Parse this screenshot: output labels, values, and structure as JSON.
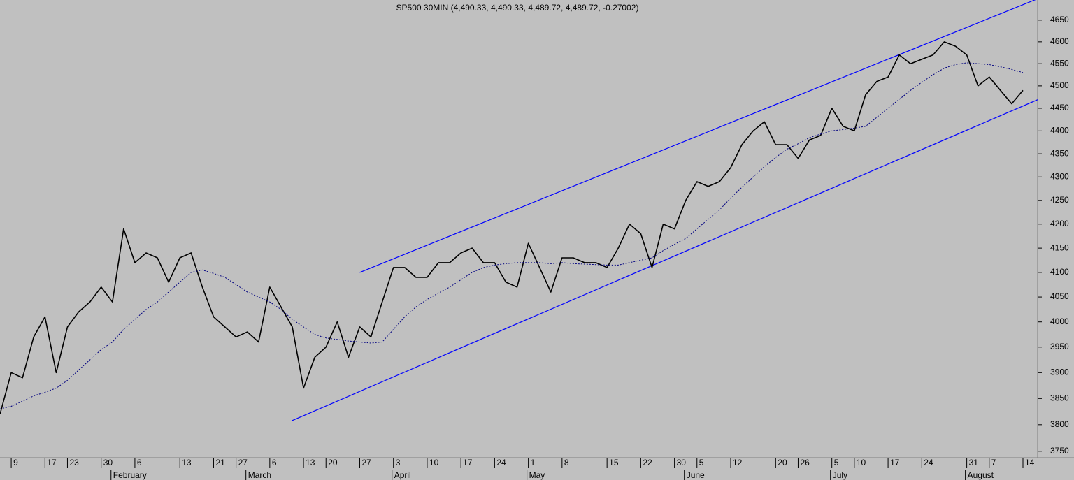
{
  "chart_data": {
    "type": "line",
    "title": "SP500 30MIN (4,490.33, 4,490.33, 4,489.72, 4,489.72, -0.27002)",
    "categories": [
      null,
      "9",
      null,
      null,
      "17",
      null,
      "23",
      null,
      null,
      "30",
      null,
      null,
      "6",
      null,
      null,
      null,
      "13",
      null,
      null,
      "21",
      null,
      "27",
      null,
      null,
      "6",
      null,
      null,
      "13",
      null,
      "20",
      null,
      null,
      "27",
      null,
      null,
      "3",
      null,
      null,
      "10",
      null,
      null,
      "17",
      null,
      null,
      "24",
      null,
      null,
      "1",
      null,
      null,
      "8",
      null,
      null,
      null,
      "15",
      null,
      null,
      "22",
      null,
      null,
      "30",
      null,
      "5",
      null,
      null,
      "12",
      null,
      null,
      null,
      "20",
      null,
      "26",
      null,
      null,
      "5",
      null,
      "10",
      null,
      null,
      "17",
      null,
      null,
      "24",
      null,
      null,
      null,
      "31",
      null,
      "7",
      null,
      null,
      "14"
    ],
    "months": [
      null,
      null,
      null,
      null,
      null,
      null,
      null,
      null,
      null,
      null,
      "February",
      null,
      null,
      null,
      null,
      null,
      null,
      null,
      null,
      null,
      null,
      null,
      "March",
      null,
      null,
      null,
      null,
      null,
      null,
      null,
      null,
      null,
      null,
      null,
      null,
      "April",
      null,
      null,
      null,
      null,
      null,
      null,
      null,
      null,
      null,
      null,
      null,
      "May",
      null,
      null,
      null,
      null,
      null,
      null,
      null,
      null,
      null,
      null,
      null,
      null,
      null,
      "June",
      null,
      null,
      null,
      null,
      null,
      null,
      null,
      null,
      null,
      null,
      null,
      null,
      "July",
      null,
      null,
      null,
      null,
      null,
      null,
      null,
      null,
      null,
      null,
      null,
      "August",
      null,
      null,
      null,
      null,
      null
    ],
    "series": [
      {
        "color": "#000000",
        "style": "solid",
        "values": [
          3820,
          3900,
          3890,
          3970,
          4010,
          3900,
          3990,
          4020,
          4040,
          4070,
          4040,
          4190,
          4120,
          4140,
          4130,
          4080,
          4130,
          4140,
          4070,
          4010,
          3990,
          3970,
          3980,
          3960,
          4070,
          4030,
          3990,
          3870,
          3930,
          3950,
          4000,
          3930,
          3990,
          3970,
          4040,
          4110,
          4110,
          4090,
          4090,
          4120,
          4120,
          4140,
          4150,
          4120,
          4120,
          4080,
          4070,
          4160,
          4110,
          4060,
          4130,
          4130,
          4120,
          4120,
          4110,
          4150,
          4200,
          4180,
          4110,
          4200,
          4190,
          4250,
          4290,
          4280,
          4290,
          4320,
          4370,
          4400,
          4420,
          4370,
          4370,
          4340,
          4380,
          4390,
          4450,
          4410,
          4400,
          4480,
          4510,
          4520,
          4570,
          4550,
          4560,
          4570,
          4600,
          4590,
          4570,
          4500,
          4520,
          4490,
          4460,
          4490
        ]
      },
      {
        "color": "#00007f",
        "style": "dotted",
        "values": [
          3830,
          3835,
          3845,
          3855,
          3862,
          3870,
          3885,
          3905,
          3925,
          3945,
          3960,
          3985,
          4005,
          4025,
          4040,
          4060,
          4080,
          4100,
          4105,
          4098,
          4090,
          4075,
          4060,
          4050,
          4040,
          4025,
          4005,
          3990,
          3975,
          3968,
          3965,
          3962,
          3960,
          3958,
          3960,
          3985,
          4010,
          4030,
          4045,
          4058,
          4070,
          4085,
          4100,
          4110,
          4115,
          4118,
          4120,
          4120,
          4120,
          4118,
          4120,
          4118,
          4117,
          4116,
          4115,
          4115,
          4120,
          4125,
          4130,
          4145,
          4158,
          4170,
          4190,
          4210,
          4230,
          4255,
          4278,
          4300,
          4322,
          4342,
          4360,
          4372,
          4385,
          4393,
          4400,
          4403,
          4406,
          4410,
          4430,
          4450,
          4470,
          4490,
          4508,
          4525,
          4540,
          4548,
          4552,
          4550,
          4548,
          4543,
          4537,
          4530
        ]
      }
    ],
    "trendlines": [
      {
        "color": "#0000ff",
        "x": [
          32,
          91
        ],
        "values": [
          4100,
          4686
        ]
      },
      {
        "color": "#0000ff",
        "x": [
          26,
          91
        ],
        "values": [
          3808,
          4455
        ]
      }
    ],
    "log_scale": true,
    "ylim": [
      3738,
      4697
    ],
    "yticks": [
      3750,
      3800,
      3850,
      3900,
      3950,
      4000,
      4050,
      4100,
      4150,
      4200,
      4250,
      4300,
      4350,
      4400,
      4450,
      4500,
      4550,
      4600,
      4650
    ]
  }
}
